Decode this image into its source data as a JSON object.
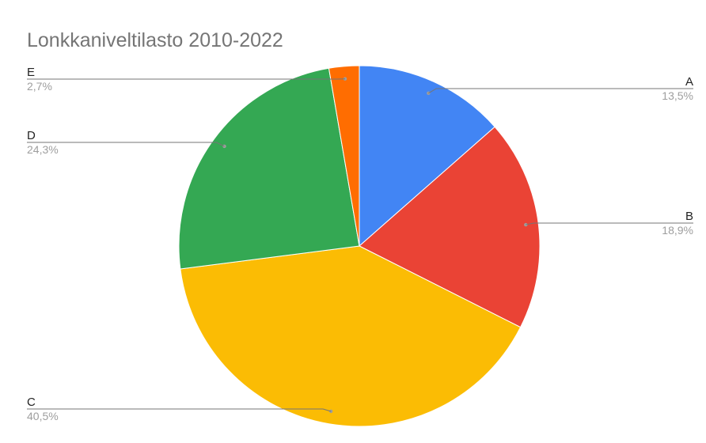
{
  "chart_data": {
    "type": "pie",
    "title": "Lonkkaniveltilasto 2010-2022",
    "slices": [
      {
        "label": "A",
        "pct_label": "13,5%",
        "value": 13.5,
        "color": "#4285F4"
      },
      {
        "label": "B",
        "pct_label": "18,9%",
        "value": 18.9,
        "color": "#EA4335"
      },
      {
        "label": "C",
        "pct_label": "40,5%",
        "value": 40.5,
        "color": "#FBBC04"
      },
      {
        "label": "D",
        "pct_label": "24,3%",
        "value": 24.3,
        "color": "#34A853"
      },
      {
        "label": "E",
        "pct_label": "2,7%",
        "value": 2.7,
        "color": "#FF6D01"
      }
    ],
    "start_angle_deg": 0,
    "direction": "clockwise",
    "legend": "none",
    "label_style": "leader-lines"
  }
}
